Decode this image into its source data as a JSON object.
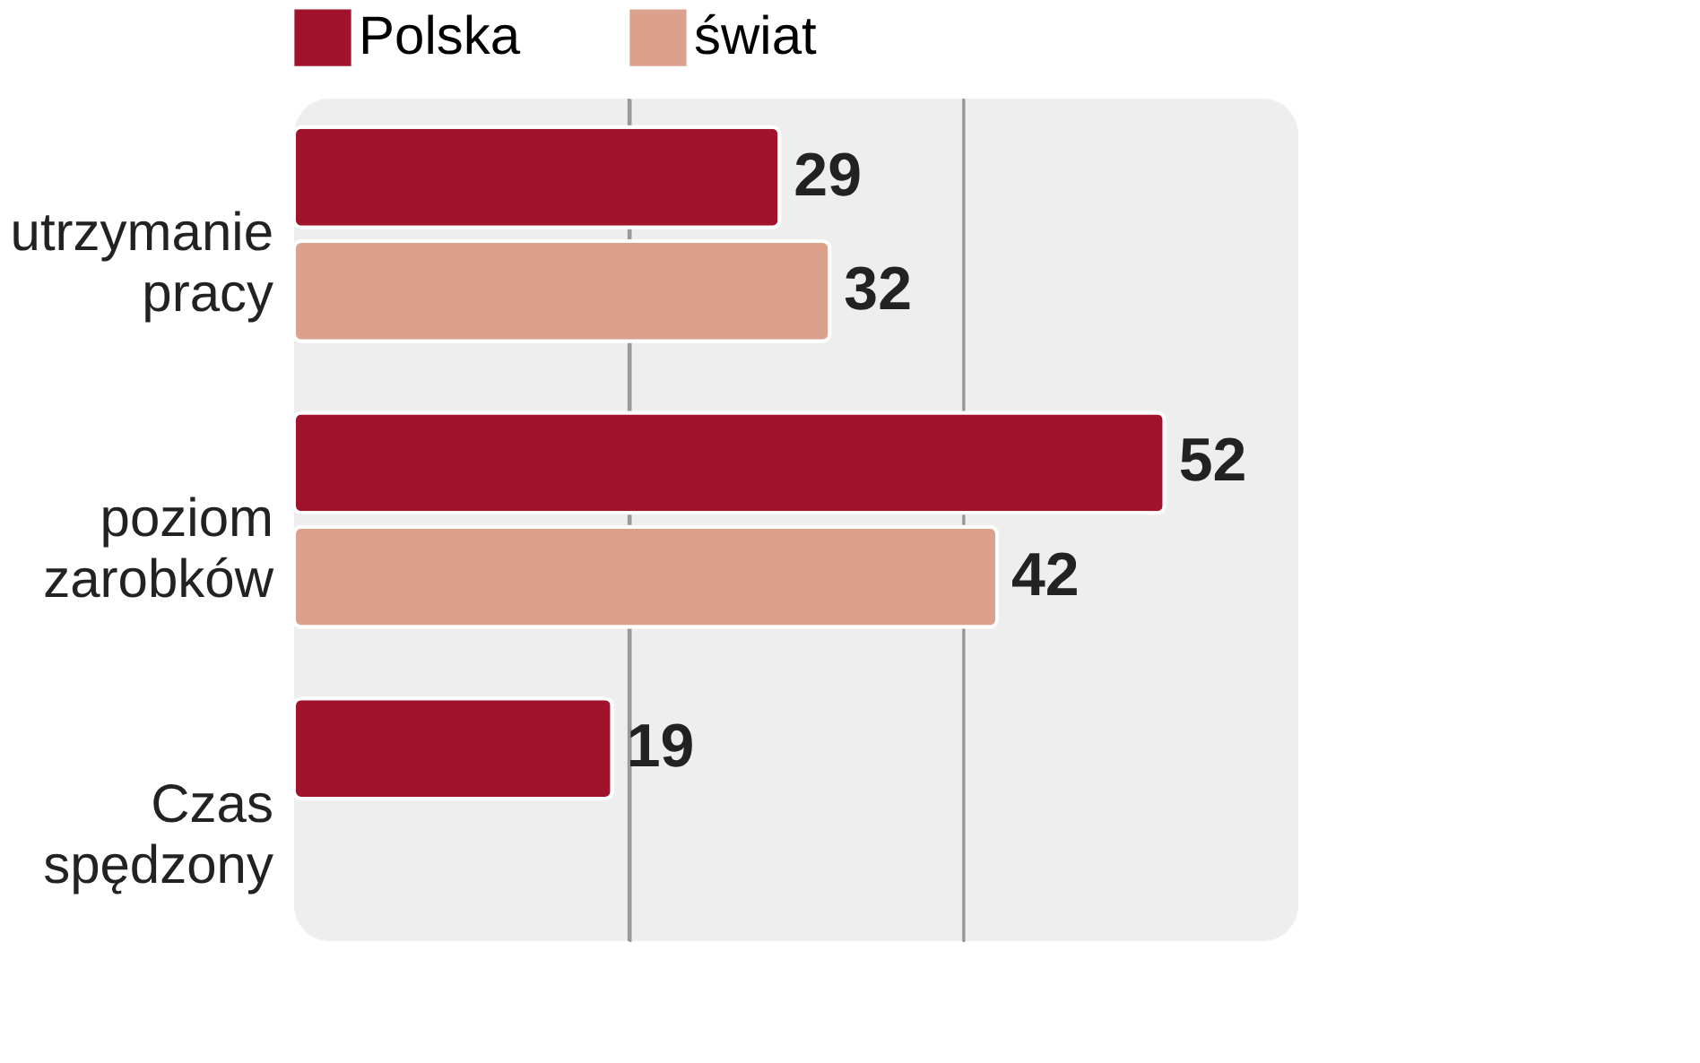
{
  "chart_data": {
    "type": "bar",
    "orientation": "horizontal",
    "categories": [
      "utrzymanie pracy",
      "poziom zarobków",
      "Czas spędzony"
    ],
    "series": [
      {
        "name": "Polska",
        "color": "#a0132a",
        "values": [
          29,
          52,
          19
        ]
      },
      {
        "name": "świat",
        "color": "#dba18c",
        "values": [
          32,
          42,
          null
        ]
      }
    ],
    "xlim": [
      0,
      60
    ],
    "xticks": [
      {
        "value": 20,
        "label": null
      },
      {
        "value": 40,
        "label": null
      }
    ],
    "grid": "x",
    "legend": "top",
    "data_labels": true,
    "tick_labels": "y"
  }
}
